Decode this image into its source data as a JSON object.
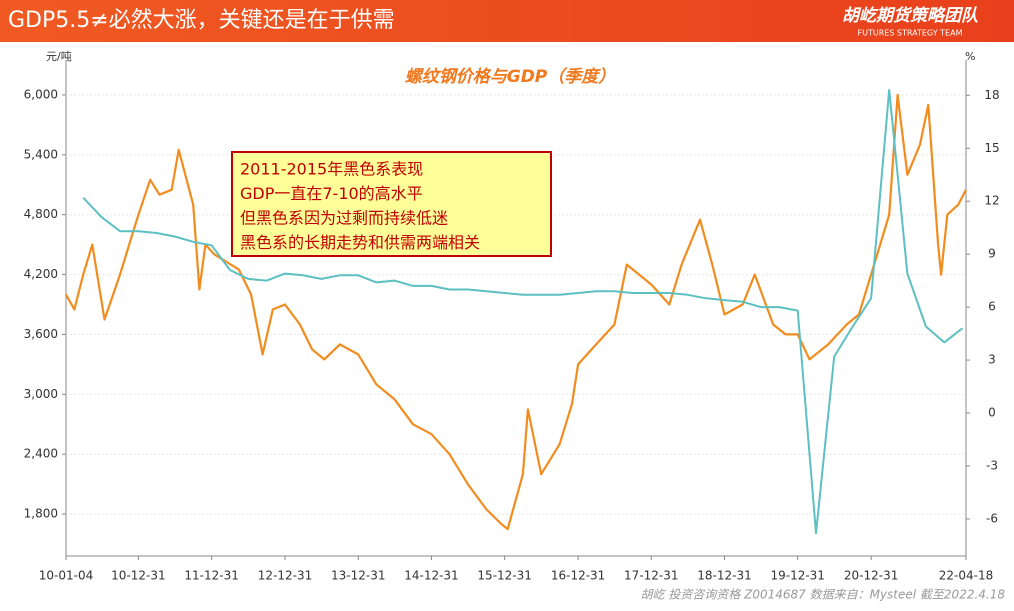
{
  "header": {
    "title": "GDP5.5≠必然大涨，关键还是在于供需",
    "brand": "胡屹期货策略团队",
    "brand_sub": "FUTURES STRATEGY TEAM"
  },
  "footer": "胡屹 投资咨询资格 Z0014687 数据来自：Mysteel 截至2022.4.18",
  "chart_data": {
    "type": "line",
    "title": "螺纹钢价格与GDP（季度）",
    "y_label": "元/吨",
    "y2_label": "%",
    "annotations": [
      "2011-2015年黑色系表现",
      "GDP一直在7-10的高水平",
      "但黑色系因为过剩而持续低迷",
      "黑色系的长期走势和供需两端相关"
    ],
    "xlim": [
      "10-01-04",
      "22-04-18"
    ],
    "xticks": [
      "10-01-04",
      "10-12-31",
      "11-12-31",
      "12-12-31",
      "13-12-31",
      "14-12-31",
      "15-12-31",
      "16-12-31",
      "17-12-31",
      "18-12-31",
      "19-12-31",
      "20-12-31",
      "22-04-18"
    ],
    "ylim": [
      1380,
      6350
    ],
    "yticks": [
      {
        "value": 1800,
        "label": "1,800"
      },
      {
        "value": 2400,
        "label": "2,400"
      },
      {
        "value": 3000,
        "label": "3,000"
      },
      {
        "value": 3600,
        "label": "3,600"
      },
      {
        "value": 4200,
        "label": "4,200"
      },
      {
        "value": 4800,
        "label": "4,800"
      },
      {
        "value": 5400,
        "label": "5,400"
      },
      {
        "value": 6000,
        "label": "6,000"
      }
    ],
    "y2lim": [
      -8.1,
      20
    ],
    "y2ticks": [
      -6,
      -3,
      0,
      3,
      6,
      9,
      12,
      15,
      18
    ],
    "grid": true,
    "series": [
      {
        "name": "螺纹钢价格",
        "color": "#f28c1e",
        "x": [
          "10-01-04",
          "10-02-15",
          "10-03-31",
          "10-05-15",
          "10-07-15",
          "10-09-30",
          "10-11-15",
          "10-12-31",
          "11-02-28",
          "11-04-15",
          "11-06-15",
          "11-07-20",
          "11-09-30",
          "11-10-31",
          "11-11-30",
          "12-01-15",
          "12-05-15",
          "12-07-15",
          "12-09-10",
          "12-10-31",
          "12-12-31",
          "13-03-15",
          "13-05-15",
          "13-07-15",
          "13-09-30",
          "13-12-31",
          "14-03-31",
          "14-06-30",
          "14-09-30",
          "14-12-31",
          "15-03-31",
          "15-06-30",
          "15-09-30",
          "15-12-15",
          "16-01-15",
          "16-03-31",
          "16-04-25",
          "16-06-30",
          "16-09-30",
          "16-11-30",
          "16-12-31",
          "17-03-31",
          "17-06-30",
          "17-08-31",
          "17-10-31",
          "17-12-31",
          "18-03-31",
          "18-05-31",
          "18-08-31",
          "18-10-31",
          "18-12-31",
          "19-03-31",
          "19-05-31",
          "19-08-31",
          "19-10-31",
          "19-12-31",
          "20-02-28",
          "20-05-31",
          "20-08-31",
          "20-10-31",
          "20-12-31",
          "21-03-31",
          "21-05-12",
          "21-06-30",
          "21-08-31",
          "21-10-12",
          "21-11-30",
          "21-12-15",
          "22-01-15",
          "22-03-10",
          "22-04-18"
        ],
        "values": [
          4000,
          3850,
          4200,
          4500,
          3750,
          4200,
          4500,
          4800,
          5150,
          5000,
          5050,
          5450,
          4900,
          4050,
          4500,
          4400,
          4250,
          4000,
          3400,
          3850,
          3900,
          3700,
          3450,
          3350,
          3500,
          3400,
          3100,
          2950,
          2700,
          2600,
          2400,
          2100,
          1850,
          1700,
          1650,
          2200,
          2850,
          2200,
          2500,
          2900,
          3300,
          3500,
          3700,
          4300,
          4200,
          4100,
          3900,
          4300,
          4750,
          4300,
          3800,
          3900,
          4200,
          3700,
          3600,
          3600,
          3350,
          3500,
          3700,
          3800,
          4200,
          4800,
          6000,
          5200,
          5500,
          5900,
          4500,
          4200,
          4800,
          4900,
          5050
        ]
      },
      {
        "name": "GDP",
        "color": "#5cbfc2",
        "axis": "y2",
        "x": [
          "10-03-31",
          "10-06-30",
          "10-09-30",
          "10-12-31",
          "11-03-31",
          "11-06-30",
          "11-09-30",
          "11-12-31",
          "12-03-31",
          "12-06-30",
          "12-09-30",
          "12-12-31",
          "13-03-31",
          "13-06-30",
          "13-09-30",
          "13-12-31",
          "14-03-31",
          "14-06-30",
          "14-09-30",
          "14-12-31",
          "15-03-31",
          "15-06-30",
          "15-09-30",
          "15-12-31",
          "16-03-31",
          "16-06-30",
          "16-09-30",
          "16-12-31",
          "17-03-31",
          "17-06-30",
          "17-09-30",
          "17-12-31",
          "18-03-31",
          "18-06-30",
          "18-09-30",
          "18-12-31",
          "19-03-31",
          "19-06-30",
          "19-09-30",
          "19-12-31",
          "20-03-31",
          "20-06-30",
          "20-09-30",
          "20-12-31",
          "21-03-31",
          "21-06-30",
          "21-09-30",
          "21-12-31",
          "22-03-31"
        ],
        "values": [
          12.2,
          11.1,
          10.3,
          10.3,
          10.2,
          10.0,
          9.7,
          9.5,
          8.1,
          7.6,
          7.5,
          7.9,
          7.8,
          7.6,
          7.8,
          7.8,
          7.4,
          7.5,
          7.2,
          7.2,
          7.0,
          7.0,
          6.9,
          6.8,
          6.7,
          6.7,
          6.7,
          6.8,
          6.9,
          6.9,
          6.8,
          6.8,
          6.8,
          6.7,
          6.5,
          6.4,
          6.3,
          6.0,
          6.0,
          5.8,
          -6.8,
          3.2,
          4.9,
          6.5,
          18.3,
          7.9,
          4.9,
          4.0,
          4.8
        ]
      }
    ]
  }
}
